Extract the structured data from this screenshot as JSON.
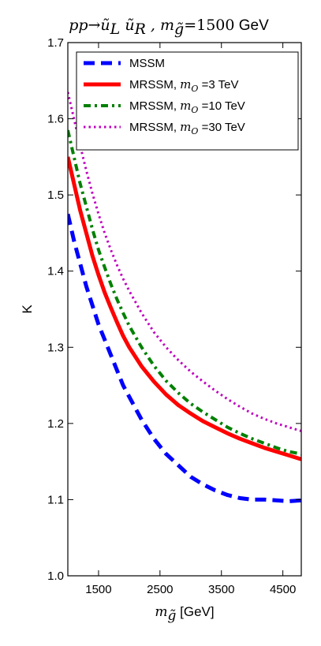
{
  "chart_data": {
    "type": "line",
    "title": {
      "process": "pp→ũ",
      "sub1": "L",
      "mid": " ũ",
      "sub2": "R",
      "comma": " , m",
      "sub3": "g̃",
      "eq": "=1500",
      "unit": " GeV"
    },
    "xlabel": {
      "sym": "m",
      "sub": "g̃",
      "unit": " [GeV]"
    },
    "ylabel": "K",
    "xlim": [
      1000,
      4800
    ],
    "ylim": [
      1.0,
      1.7
    ],
    "xticks": [
      1500,
      2500,
      3500,
      4500
    ],
    "xtick_labels": [
      "1500",
      "2500",
      "3500",
      "4500"
    ],
    "yticks": [
      1.0,
      1.1,
      1.2,
      1.3,
      1.4,
      1.5,
      1.6,
      1.7
    ],
    "ytick_labels": [
      "1.0",
      "1.1",
      "1.2",
      "1.3",
      "1.4",
      "1.5",
      "1.6",
      "1.7"
    ],
    "grid": false,
    "legend_position": "top-right",
    "series": [
      {
        "name": "MSSM",
        "label_parts": {
          "pre": "MSSM",
          "sym": "",
          "sub": "",
          "post": ""
        },
        "color": "#0000ff",
        "style": "dashed",
        "x": [
          1000,
          1100,
          1200,
          1300,
          1400,
          1500,
          1600,
          1700,
          1800,
          1900,
          2000,
          2200,
          2400,
          2600,
          2800,
          3000,
          3200,
          3400,
          3600,
          3800,
          4000,
          4200,
          4400,
          4600,
          4800
        ],
        "y": [
          1.475,
          1.44,
          1.41,
          1.38,
          1.355,
          1.33,
          1.31,
          1.29,
          1.27,
          1.25,
          1.235,
          1.205,
          1.18,
          1.16,
          1.145,
          1.13,
          1.12,
          1.112,
          1.106,
          1.102,
          1.1,
          1.1,
          1.099,
          1.098,
          1.099
        ]
      },
      {
        "name": "MRSSM, mO=3 TeV",
        "label_parts": {
          "pre": "MRSSM, ",
          "sym": "m",
          "sub": "O",
          "post": " =3 TeV"
        },
        "color": "#ff0000",
        "style": "solid",
        "x": [
          1000,
          1100,
          1200,
          1300,
          1400,
          1500,
          1600,
          1700,
          1800,
          1900,
          2000,
          2200,
          2400,
          2600,
          2800,
          3000,
          3200,
          3400,
          3600,
          3800,
          4000,
          4200,
          4400,
          4600,
          4800
        ],
        "y": [
          1.55,
          1.515,
          1.48,
          1.45,
          1.42,
          1.395,
          1.372,
          1.352,
          1.333,
          1.315,
          1.3,
          1.275,
          1.255,
          1.238,
          1.224,
          1.213,
          1.203,
          1.195,
          1.187,
          1.18,
          1.174,
          1.168,
          1.163,
          1.158,
          1.153
        ]
      },
      {
        "name": "MRSSM, mO=10 TeV",
        "label_parts": {
          "pre": "MRSSM, ",
          "sym": "m",
          "sub": "O",
          "post": " =10 TeV"
        },
        "color": "#008000",
        "style": "dashdot",
        "x": [
          1000,
          1100,
          1200,
          1300,
          1400,
          1500,
          1600,
          1700,
          1800,
          1900,
          2000,
          2200,
          2400,
          2600,
          2800,
          3000,
          3200,
          3400,
          3600,
          3800,
          4000,
          4200,
          4400,
          4600,
          4800
        ],
        "y": [
          1.585,
          1.55,
          1.515,
          1.485,
          1.455,
          1.428,
          1.405,
          1.383,
          1.363,
          1.345,
          1.328,
          1.3,
          1.276,
          1.256,
          1.24,
          1.226,
          1.215,
          1.205,
          1.195,
          1.187,
          1.18,
          1.174,
          1.168,
          1.163,
          1.16
        ]
      },
      {
        "name": "MRSSM, mO=30 TeV",
        "label_parts": {
          "pre": "MRSSM, ",
          "sym": "m",
          "sub": "O",
          "post": " =30 TeV"
        },
        "color": "#bf00bf",
        "style": "dotted",
        "x": [
          1000,
          1100,
          1200,
          1300,
          1400,
          1500,
          1600,
          1700,
          1800,
          1900,
          2000,
          2200,
          2400,
          2600,
          2800,
          3000,
          3200,
          3400,
          3600,
          3800,
          4000,
          4200,
          4400,
          4600,
          4800
        ],
        "y": [
          1.635,
          1.6,
          1.565,
          1.532,
          1.502,
          1.475,
          1.45,
          1.428,
          1.408,
          1.39,
          1.374,
          1.345,
          1.32,
          1.3,
          1.283,
          1.268,
          1.255,
          1.243,
          1.232,
          1.222,
          1.213,
          1.206,
          1.2,
          1.195,
          1.19
        ]
      }
    ]
  }
}
